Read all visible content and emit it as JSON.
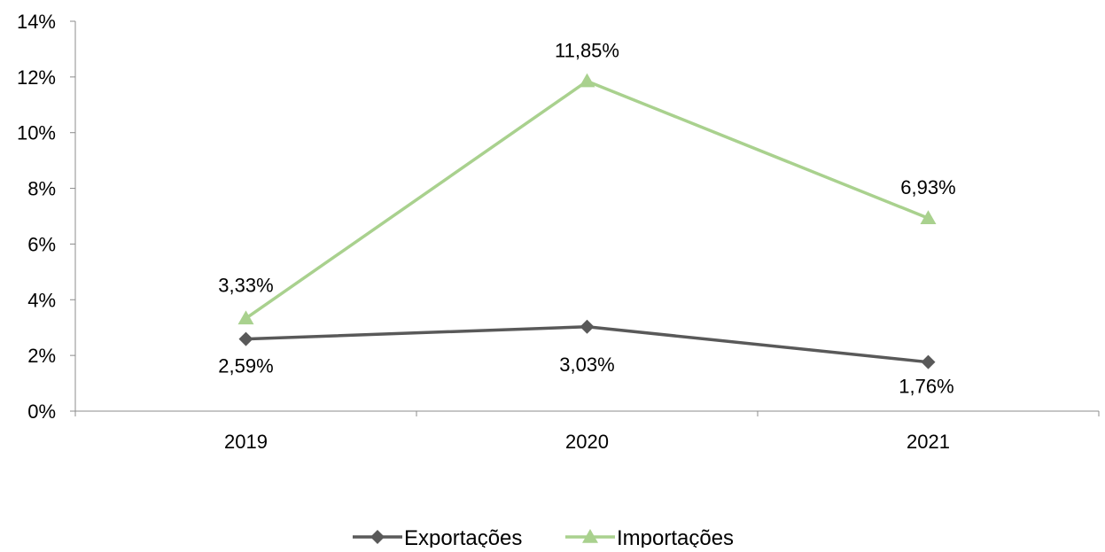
{
  "chart_data": {
    "type": "line",
    "title": "",
    "xlabel": "",
    "ylabel": "",
    "categories": [
      "2019",
      "2020",
      "2021"
    ],
    "ylim": [
      0,
      14
    ],
    "y_ticks": [
      0,
      2,
      4,
      6,
      8,
      10,
      12,
      14
    ],
    "y_tick_labels": [
      "0%",
      "2%",
      "4%",
      "6%",
      "8%",
      "10%",
      "12%",
      "14%"
    ],
    "grid": false,
    "legend_position": "bottom",
    "series": [
      {
        "name": "Exportações",
        "values": [
          2.59,
          3.03,
          1.76
        ],
        "labels": [
          "2,59%",
          "3,03%",
          "1,76%"
        ],
        "color": "#595959",
        "marker": "diamond"
      },
      {
        "name": "Importações",
        "values": [
          3.33,
          11.85,
          6.93
        ],
        "labels": [
          "3,33%",
          "11,85%",
          "6,93%"
        ],
        "color": "#a9d18e",
        "marker": "triangle"
      }
    ]
  }
}
